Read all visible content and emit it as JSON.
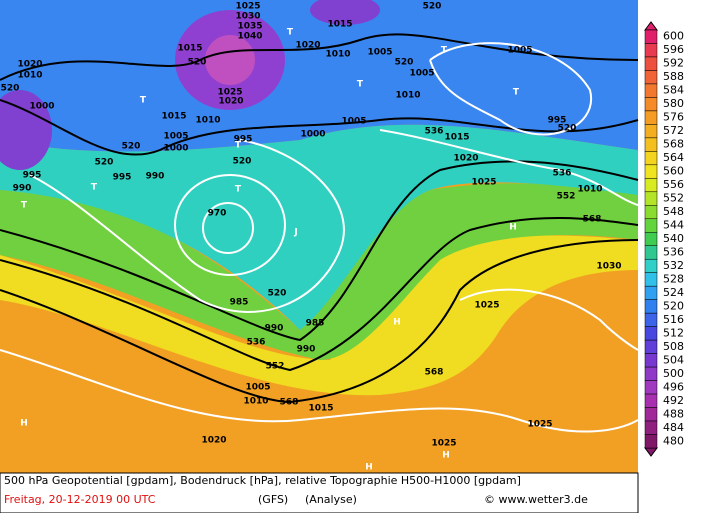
{
  "map": {
    "labels": [
      "1025",
      "1030",
      "1035",
      "1040",
      "1015",
      "520",
      "T",
      "1020",
      "1010",
      "1005",
      "T",
      "520",
      "1005",
      "1005",
      "T",
      "T",
      "1010",
      "1005",
      "536",
      "1015",
      "995",
      "520",
      "1020",
      "1025",
      "536",
      "552",
      "1010",
      "568",
      "H",
      "1030",
      "1020",
      "1010",
      "520",
      "1000",
      "T",
      "520",
      "995",
      "T",
      "990",
      "T",
      "995",
      "990",
      "1015",
      "1010",
      "1005",
      "1000",
      "520",
      "995",
      "520",
      "T",
      "970",
      "1000",
      "J",
      "520",
      "985",
      "990",
      "985",
      "H",
      "536",
      "990",
      "552",
      "1005",
      "1010",
      "568",
      "1015",
      "568",
      "1025",
      "1025",
      "H",
      "1020",
      "1025",
      "H",
      "H",
      "520",
      "1015",
      "1020",
      "1025",
      "T"
    ]
  },
  "colorbar": {
    "values": [
      600,
      596,
      592,
      588,
      584,
      580,
      576,
      572,
      568,
      564,
      560,
      556,
      552,
      548,
      544,
      540,
      536,
      532,
      528,
      524,
      520,
      516,
      512,
      508,
      504,
      500,
      496,
      492,
      488,
      484,
      480
    ],
    "colors": [
      "#e0206a",
      "#e83a50",
      "#ee5040",
      "#f06438",
      "#f27830",
      "#f48a28",
      "#f49c24",
      "#f4ae22",
      "#f4c020",
      "#f4d420",
      "#f0e420",
      "#d8ea20",
      "#b4e428",
      "#8cdc30",
      "#64d43c",
      "#40cc50",
      "#30c890",
      "#30d0c8",
      "#30c0e8",
      "#30a0f0",
      "#3080f0",
      "#3c64e8",
      "#4848e0",
      "#6040d8",
      "#7838d0",
      "#9038c8",
      "#a038c0",
      "#a830b0",
      "#a02898",
      "#902080",
      "#801868"
    ]
  },
  "footer": {
    "description": "500 hPa Geopotential [gpdam], Bodendruck [hPa], relative Topographie H500-H1000 [gpdam]",
    "date": "Freitag, 20-12-2019  00 UTC",
    "model": "(GFS)",
    "run": "(Analyse)",
    "credit": "© www.wetter3.de"
  }
}
